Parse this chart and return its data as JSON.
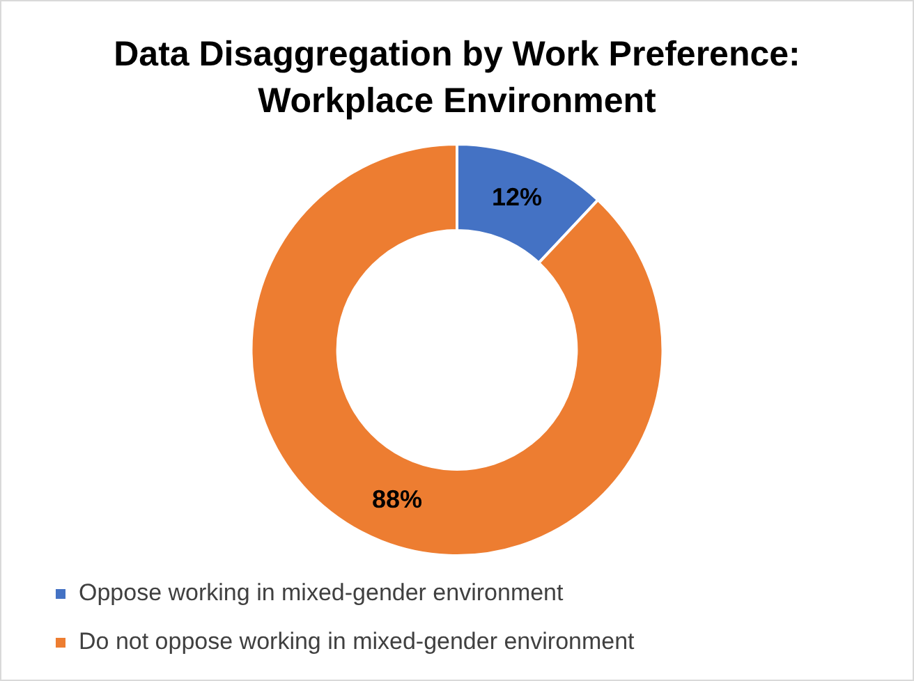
{
  "chart_data": {
    "type": "donut",
    "title": "Data Disaggregation by Work Preference: Workplace Environment",
    "categories": [
      "Oppose working in mixed-gender environment",
      "Do not oppose working in mixed-gender environment"
    ],
    "values": [
      12,
      88
    ],
    "colors": [
      "#4472c4",
      "#ed7d31"
    ],
    "value_labels": [
      "12%",
      "88%"
    ],
    "legend": "bottom"
  }
}
